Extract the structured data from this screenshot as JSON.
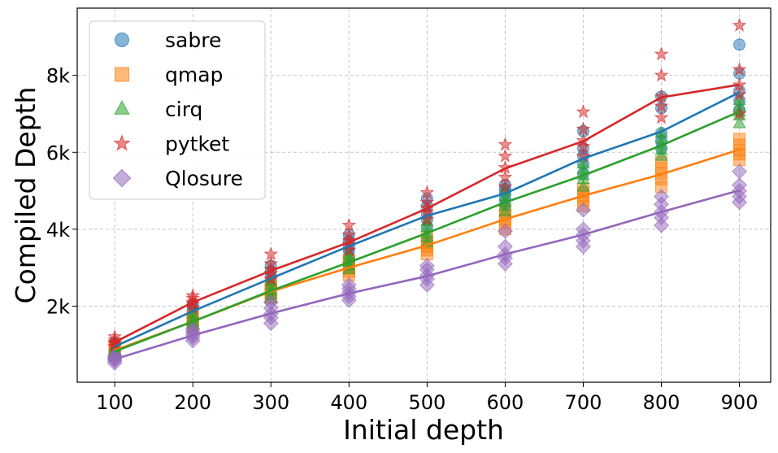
{
  "chart_data": {
    "type": "scatter",
    "title": "",
    "xlabel": "Initial depth",
    "ylabel": "Compiled Depth",
    "x_ticks": [
      100,
      200,
      300,
      400,
      500,
      600,
      700,
      800,
      900
    ],
    "x_tick_labels": [
      "100",
      "200",
      "300",
      "400",
      "500",
      "600",
      "700",
      "800",
      "900"
    ],
    "y_ticks": [
      2000,
      4000,
      6000,
      8000
    ],
    "y_tick_labels": [
      "2k",
      "4k",
      "6k",
      "8k"
    ],
    "xlim": [
      52,
      940
    ],
    "ylim": [
      20,
      9750
    ],
    "grid": true,
    "legend_position": "top-left",
    "x": [
      100,
      200,
      300,
      400,
      500,
      600,
      700,
      800,
      900
    ],
    "series": [
      {
        "name": "sabre",
        "marker": "circle",
        "color": "#1f77b4",
        "mean": [
          950,
          1870,
          2720,
          3560,
          4350,
          4930,
          5840,
          6540,
          7560
        ],
        "points": [
          [
            820,
            900,
            950,
            1000,
            1050
          ],
          [
            1700,
            1800,
            1870,
            1950,
            2050
          ],
          [
            2500,
            2650,
            2750,
            2900,
            3050
          ],
          [
            3300,
            3450,
            3550,
            3700,
            3850
          ],
          [
            4050,
            4250,
            4400,
            4600,
            4800
          ],
          [
            4650,
            4800,
            4950,
            5050,
            5150
          ],
          [
            5450,
            5700,
            5900,
            6100,
            6550
          ],
          [
            6100,
            6300,
            6500,
            7150,
            7450
          ],
          [
            7100,
            7350,
            7600,
            8050,
            8800
          ]
        ]
      },
      {
        "name": "qmap",
        "marker": "square",
        "color": "#ff7f0e",
        "mean": [
          850,
          1600,
          2380,
          3000,
          3580,
          4260,
          4870,
          5430,
          6070
        ],
        "points": [
          [
            720,
            800,
            850,
            900,
            950
          ],
          [
            1450,
            1550,
            1600,
            1650,
            1750
          ],
          [
            2200,
            2300,
            2400,
            2500,
            2600
          ],
          [
            2800,
            2900,
            3000,
            3100,
            3200
          ],
          [
            3350,
            3450,
            3550,
            3650,
            3800
          ],
          [
            4000,
            4150,
            4250,
            4350,
            4500
          ],
          [
            4600,
            4750,
            4850,
            4950,
            5050
          ],
          [
            5100,
            5300,
            5450,
            5600,
            5750
          ],
          [
            5800,
            5950,
            6050,
            6200,
            6350
          ]
        ]
      },
      {
        "name": "cirq",
        "marker": "triangle",
        "color": "#2ca02c",
        "mean": [
          820,
          1600,
          2400,
          3140,
          3900,
          4700,
          5400,
          6180,
          7060
        ],
        "points": [
          [
            700,
            780,
            820,
            880,
            940
          ],
          [
            1450,
            1550,
            1600,
            1700,
            1800
          ],
          [
            2200,
            2300,
            2400,
            2550,
            2650
          ],
          [
            2950,
            3050,
            3150,
            3250,
            3350
          ],
          [
            3650,
            3800,
            3900,
            4050,
            4200
          ],
          [
            4450,
            4600,
            4700,
            4850,
            5000
          ],
          [
            5100,
            5300,
            5400,
            5550,
            5700
          ],
          [
            5900,
            6050,
            6200,
            6350,
            6500
          ],
          [
            6750,
            6950,
            7050,
            7200,
            7350
          ]
        ]
      },
      {
        "name": "pytket",
        "marker": "star",
        "color": "#d62728",
        "mean": [
          1060,
          2100,
          2920,
          3660,
          4540,
          5580,
          6290,
          7430,
          7760
        ],
        "points": [
          [
            950,
            1020,
            1060,
            1120,
            1200
          ],
          [
            1950,
            2050,
            2100,
            2200,
            2270
          ],
          [
            2700,
            2850,
            2950,
            3100,
            3350
          ],
          [
            3450,
            3600,
            3700,
            3850,
            4100
          ],
          [
            4250,
            4450,
            4550,
            4700,
            4950
          ],
          [
            5100,
            5350,
            5600,
            5900,
            6200
          ],
          [
            5900,
            6150,
            6300,
            6600,
            7050
          ],
          [
            6900,
            7200,
            7450,
            8000,
            8550
          ],
          [
            7000,
            7500,
            7750,
            8150,
            9300
          ]
        ]
      },
      {
        "name": "Qlosure",
        "marker": "diamond",
        "color": "#9467bd",
        "mean": [
          620,
          1240,
          1810,
          2330,
          2780,
          3350,
          3860,
          4450,
          5010
        ],
        "points": [
          [
            520,
            580,
            620,
            660,
            720
          ],
          [
            1100,
            1180,
            1250,
            1320,
            1400
          ],
          [
            1550,
            1700,
            1800,
            1950,
            2100
          ],
          [
            2150,
            2250,
            2350,
            2450,
            2550
          ],
          [
            2550,
            2700,
            2800,
            2950,
            3050
          ],
          [
            3100,
            3250,
            3350,
            3550,
            3950
          ],
          [
            3550,
            3700,
            3850,
            4000,
            4500
          ],
          [
            4100,
            4300,
            4450,
            4650,
            4850
          ],
          [
            4700,
            4850,
            5000,
            5150,
            5500
          ]
        ]
      }
    ]
  }
}
